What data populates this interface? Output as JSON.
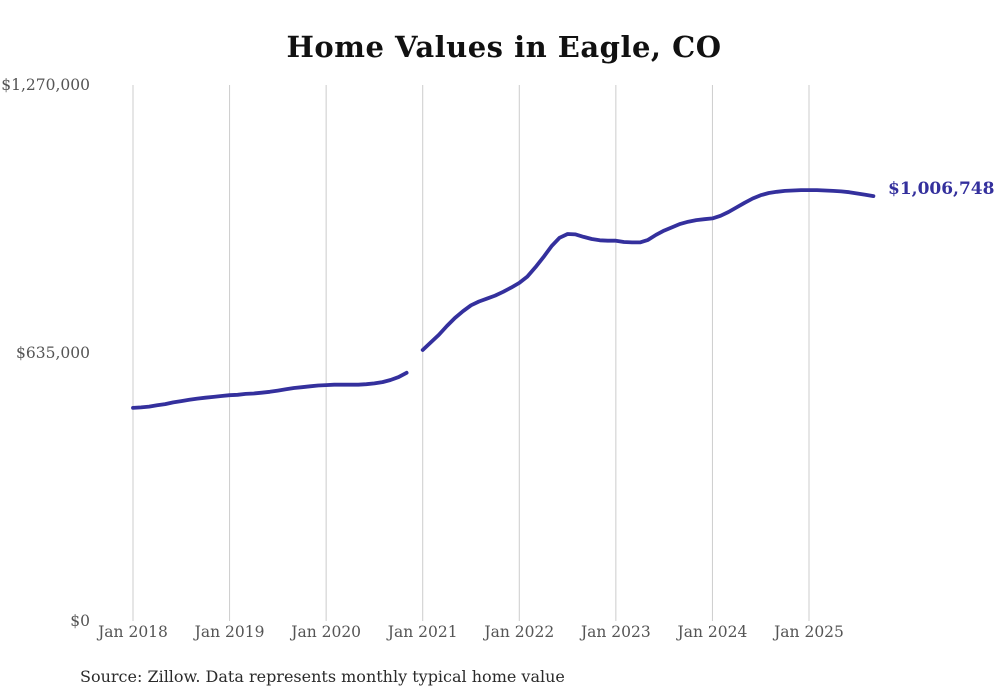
{
  "chart_data": {
    "type": "line",
    "title": "Home Values in Eagle, CO",
    "source_note": "Source: Zillow. Data represents monthly typical home value",
    "end_label": "$1,006,748",
    "latest_value": 1006748,
    "line_color": "#34309d",
    "grid_color": "#cccccc",
    "axis_text_color": "#555555",
    "grid": "vertical-only",
    "legend_position": "none",
    "ylim": [
      0,
      1270000
    ],
    "ylabel": "",
    "xlabel": "",
    "y_ticks": [
      {
        "label": "$0",
        "value": 0
      },
      {
        "label": "$635,000",
        "value": 635000
      },
      {
        "label": "$1,270,000",
        "value": 1270000
      }
    ],
    "x_ticks": [
      {
        "label": "Jan 2018",
        "month_index": 0
      },
      {
        "label": "Jan 2019",
        "month_index": 12
      },
      {
        "label": "Jan 2020",
        "month_index": 24
      },
      {
        "label": "Jan 2021",
        "month_index": 36
      },
      {
        "label": "Jan 2022",
        "month_index": 48
      },
      {
        "label": "Jan 2023",
        "month_index": 60
      },
      {
        "label": "Jan 2024",
        "month_index": 72
      },
      {
        "label": "Jan 2025",
        "month_index": 84
      }
    ],
    "series": [
      {
        "name": "Monthly typical home value",
        "points": [
          [
            "2018-01",
            505000
          ],
          [
            "2018-02",
            506000
          ],
          [
            "2018-03",
            508000
          ],
          [
            "2018-04",
            511000
          ],
          [
            "2018-05",
            514000
          ],
          [
            "2018-06",
            518000
          ],
          [
            "2018-07",
            521000
          ],
          [
            "2018-08",
            524000
          ],
          [
            "2018-09",
            527000
          ],
          [
            "2018-10",
            529000
          ],
          [
            "2018-11",
            531000
          ],
          [
            "2018-12",
            533000
          ],
          [
            "2019-01",
            535000
          ],
          [
            "2019-02",
            536000
          ],
          [
            "2019-03",
            538000
          ],
          [
            "2019-04",
            539000
          ],
          [
            "2019-05",
            541000
          ],
          [
            "2019-06",
            543000
          ],
          [
            "2019-07",
            546000
          ],
          [
            "2019-08",
            549000
          ],
          [
            "2019-09",
            552000
          ],
          [
            "2019-10",
            554000
          ],
          [
            "2019-11",
            556000
          ],
          [
            "2019-12",
            558000
          ],
          [
            "2020-01",
            559000
          ],
          [
            "2020-02",
            560000
          ],
          [
            "2020-03",
            560000
          ],
          [
            "2020-04",
            560000
          ],
          [
            "2020-05",
            560000
          ],
          [
            "2020-06",
            561000
          ],
          [
            "2020-07",
            563000
          ],
          [
            "2020-08",
            566000
          ],
          [
            "2020-09",
            571000
          ],
          [
            "2020-10",
            578000
          ],
          [
            "2020-11",
            588000
          ],
          [
            "2020-12",
            null
          ],
          [
            "2021-01",
            642000
          ],
          [
            "2021-02",
            660000
          ],
          [
            "2021-03",
            678000
          ],
          [
            "2021-04",
            699000
          ],
          [
            "2021-05",
            718000
          ],
          [
            "2021-06",
            734000
          ],
          [
            "2021-07",
            748000
          ],
          [
            "2021-08",
            757000
          ],
          [
            "2021-09",
            764000
          ],
          [
            "2021-10",
            771000
          ],
          [
            "2021-11",
            780000
          ],
          [
            "2021-12",
            790000
          ],
          [
            "2022-01",
            801000
          ],
          [
            "2022-02",
            816000
          ],
          [
            "2022-03",
            838000
          ],
          [
            "2022-04",
            862000
          ],
          [
            "2022-05",
            888000
          ],
          [
            "2022-06",
            908000
          ],
          [
            "2022-07",
            917000
          ],
          [
            "2022-08",
            916000
          ],
          [
            "2022-09",
            910000
          ],
          [
            "2022-10",
            905000
          ],
          [
            "2022-11",
            902000
          ],
          [
            "2022-12",
            901000
          ],
          [
            "2023-01",
            901000
          ],
          [
            "2023-02",
            898000
          ],
          [
            "2023-03",
            897000
          ],
          [
            "2023-04",
            897000
          ],
          [
            "2023-05",
            903000
          ],
          [
            "2023-06",
            915000
          ],
          [
            "2023-07",
            925000
          ],
          [
            "2023-08",
            933000
          ],
          [
            "2023-09",
            941000
          ],
          [
            "2023-10",
            946000
          ],
          [
            "2023-11",
            950000
          ],
          [
            "2023-12",
            952000
          ],
          [
            "2024-01",
            954000
          ],
          [
            "2024-02",
            960000
          ],
          [
            "2024-03",
            969000
          ],
          [
            "2024-04",
            980000
          ],
          [
            "2024-05",
            991000
          ],
          [
            "2024-06",
            1001000
          ],
          [
            "2024-07",
            1009000
          ],
          [
            "2024-08",
            1014000
          ],
          [
            "2024-09",
            1017000
          ],
          [
            "2024-10",
            1019000
          ],
          [
            "2024-11",
            1020000
          ],
          [
            "2024-12",
            1021000
          ],
          [
            "2025-01",
            1021000
          ],
          [
            "2025-02",
            1021000
          ],
          [
            "2025-03",
            1020000
          ],
          [
            "2025-04",
            1019000
          ],
          [
            "2025-05",
            1018000
          ],
          [
            "2025-06",
            1016000
          ],
          [
            "2025-07",
            1013000
          ],
          [
            "2025-08",
            1010000
          ],
          [
            "2025-09",
            1006748
          ]
        ]
      }
    ]
  }
}
